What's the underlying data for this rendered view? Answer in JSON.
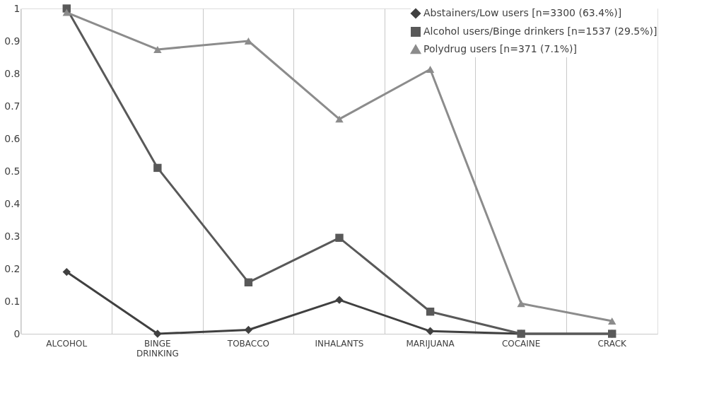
{
  "chart_data": {
    "type": "line",
    "categories": [
      "ALCOHOL",
      "BINGE DRINKING",
      "TOBACCO",
      "INHALANTS",
      "MARIJUANA",
      "COCAINE",
      "CRACK"
    ],
    "series": [
      {
        "name": "Abstainers/Low users [n=3300 (63.4%)]",
        "color": "#404040",
        "marker": "diamond",
        "values": [
          0.19,
          0.0,
          0.012,
          0.104,
          0.008,
          0.0,
          0.0
        ]
      },
      {
        "name": "Alcohol users/Binge drinkers [n=1537 (29.5%)]",
        "color": "#595959",
        "marker": "square",
        "values": [
          1.0,
          0.51,
          0.158,
          0.295,
          0.068,
          0.0,
          0.0
        ]
      },
      {
        "name": "Polydrug users [n=371 (7.1%)]",
        "color": "#8c8c8c",
        "marker": "triangle",
        "values": [
          0.988,
          0.874,
          0.9,
          0.66,
          0.813,
          0.093,
          0.039
        ]
      }
    ],
    "ylim": [
      0,
      1
    ],
    "yticks": [
      0,
      0.1,
      0.2,
      0.3,
      0.4,
      0.5,
      0.6,
      0.7,
      0.8,
      0.9,
      1
    ],
    "grid": "x",
    "legend": "top right",
    "line_style": "solid"
  }
}
